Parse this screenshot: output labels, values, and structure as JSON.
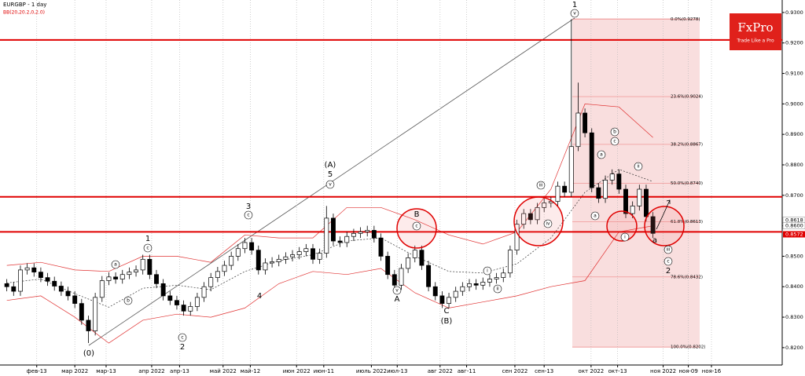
{
  "chart_data": {
    "type": "candlestick",
    "title": "EURGBP - 1 day",
    "brand": {
      "name": "FxPro",
      "tagline": "Trade Like a Pro"
    },
    "x": [
      0,
      1,
      2,
      3,
      4,
      5,
      6,
      7,
      8,
      9,
      10,
      11,
      12,
      13,
      14,
      15,
      16,
      17,
      18,
      19,
      20,
      21,
      22,
      23,
      24,
      25,
      26,
      27,
      28,
      29,
      30,
      31,
      32,
      33,
      34,
      35,
      36,
      37,
      38,
      39,
      40,
      41,
      42,
      43,
      44,
      45,
      46,
      47,
      48,
      49,
      50,
      51,
      52,
      53,
      54,
      55,
      56,
      57,
      58,
      59,
      60,
      61,
      62,
      63,
      64,
      65,
      66,
      67,
      68,
      69,
      70,
      71,
      72,
      73,
      74,
      75,
      76,
      77,
      78,
      79,
      80,
      81,
      82,
      83,
      84,
      85,
      86,
      87,
      88,
      89,
      90,
      91,
      92,
      93,
      94,
      95
    ],
    "open": [
      0.841,
      0.84,
      0.8385,
      0.8455,
      0.8462,
      0.8448,
      0.843,
      0.8418,
      0.8402,
      0.8385,
      0.837,
      0.8345,
      0.829,
      0.8255,
      0.8365,
      0.842,
      0.8432,
      0.8425,
      0.844,
      0.8448,
      0.8455,
      0.849,
      0.844,
      0.841,
      0.837,
      0.8355,
      0.834,
      0.832,
      0.8335,
      0.8365,
      0.84,
      0.843,
      0.845,
      0.847,
      0.85,
      0.8525,
      0.8545,
      0.852,
      0.8455,
      0.8478,
      0.8482,
      0.849,
      0.8498,
      0.8505,
      0.8515,
      0.8525,
      0.849,
      0.851,
      0.8625,
      0.855,
      0.8545,
      0.8565,
      0.8575,
      0.858,
      0.8585,
      0.856,
      0.85,
      0.844,
      0.8405,
      0.846,
      0.8495,
      0.852,
      0.847,
      0.84,
      0.837,
      0.8345,
      0.8365,
      0.8385,
      0.84,
      0.841,
      0.8405,
      0.8415,
      0.8425,
      0.843,
      0.8445,
      0.852,
      0.8605,
      0.864,
      0.862,
      0.866,
      0.8675,
      0.868,
      0.873,
      0.871,
      0.886,
      0.897,
      0.8905,
      0.8725,
      0.869,
      0.875,
      0.877,
      0.872,
      0.864,
      0.8665,
      0.872,
      0.863
    ],
    "high": [
      0.8425,
      0.8415,
      0.847,
      0.8477,
      0.8477,
      0.8463,
      0.8445,
      0.8433,
      0.8417,
      0.84,
      0.8385,
      0.836,
      0.8305,
      0.838,
      0.8435,
      0.8447,
      0.8447,
      0.8455,
      0.8463,
      0.847,
      0.8505,
      0.8505,
      0.8455,
      0.8425,
      0.8385,
      0.837,
      0.8355,
      0.835,
      0.838,
      0.8415,
      0.8445,
      0.8465,
      0.8485,
      0.8515,
      0.854,
      0.856,
      0.856,
      0.8535,
      0.8493,
      0.8497,
      0.8505,
      0.8513,
      0.852,
      0.853,
      0.854,
      0.854,
      0.8525,
      0.8665,
      0.864,
      0.8565,
      0.858,
      0.859,
      0.8595,
      0.86,
      0.86,
      0.8575,
      0.8515,
      0.8455,
      0.8475,
      0.851,
      0.8535,
      0.8535,
      0.8485,
      0.8415,
      0.8385,
      0.838,
      0.84,
      0.8415,
      0.8425,
      0.8425,
      0.843,
      0.844,
      0.8445,
      0.846,
      0.8535,
      0.862,
      0.8655,
      0.8655,
      0.8675,
      0.869,
      0.8695,
      0.8745,
      0.8745,
      0.9278,
      0.907,
      0.8985,
      0.892,
      0.874,
      0.8765,
      0.8785,
      0.8785,
      0.8735,
      0.868,
      0.8735,
      0.8735,
      0.8645
    ],
    "low": [
      0.8385,
      0.837,
      0.837,
      0.844,
      0.8433,
      0.8415,
      0.8403,
      0.8387,
      0.837,
      0.8355,
      0.833,
      0.8275,
      0.8215,
      0.824,
      0.835,
      0.8405,
      0.841,
      0.841,
      0.8425,
      0.8433,
      0.844,
      0.8425,
      0.8395,
      0.8355,
      0.834,
      0.8325,
      0.8305,
      0.8305,
      0.832,
      0.835,
      0.8385,
      0.8415,
      0.8435,
      0.8455,
      0.8485,
      0.851,
      0.8505,
      0.844,
      0.844,
      0.8463,
      0.8467,
      0.8475,
      0.8483,
      0.849,
      0.85,
      0.8475,
      0.8475,
      0.8495,
      0.8535,
      0.853,
      0.853,
      0.855,
      0.856,
      0.8565,
      0.8545,
      0.8485,
      0.8425,
      0.839,
      0.839,
      0.8445,
      0.848,
      0.8455,
      0.8385,
      0.8355,
      0.833,
      0.833,
      0.835,
      0.837,
      0.8385,
      0.839,
      0.839,
      0.84,
      0.841,
      0.8415,
      0.843,
      0.8505,
      0.859,
      0.8605,
      0.8605,
      0.8645,
      0.866,
      0.8665,
      0.8695,
      0.8695,
      0.8845,
      0.889,
      0.871,
      0.8675,
      0.8675,
      0.8735,
      0.8705,
      0.8625,
      0.8625,
      0.865,
      0.8615,
      0.856
    ],
    "close": [
      0.84,
      0.8385,
      0.8455,
      0.8462,
      0.8448,
      0.843,
      0.8418,
      0.8402,
      0.8385,
      0.837,
      0.8345,
      0.829,
      0.8255,
      0.8365,
      0.842,
      0.8432,
      0.8425,
      0.844,
      0.8448,
      0.8455,
      0.849,
      0.844,
      0.841,
      0.837,
      0.8355,
      0.834,
      0.832,
      0.8335,
      0.8365,
      0.84,
      0.843,
      0.845,
      0.847,
      0.85,
      0.8525,
      0.8545,
      0.852,
      0.8455,
      0.8478,
      0.8482,
      0.849,
      0.8498,
      0.8505,
      0.8515,
      0.8525,
      0.849,
      0.851,
      0.8625,
      0.855,
      0.8545,
      0.8565,
      0.8575,
      0.858,
      0.8585,
      0.856,
      0.85,
      0.844,
      0.8405,
      0.846,
      0.8495,
      0.852,
      0.847,
      0.84,
      0.837,
      0.8345,
      0.8365,
      0.8385,
      0.84,
      0.841,
      0.8405,
      0.8415,
      0.8425,
      0.843,
      0.8445,
      0.852,
      0.8605,
      0.864,
      0.862,
      0.866,
      0.8675,
      0.868,
      0.873,
      0.871,
      0.886,
      0.897,
      0.8905,
      0.8725,
      0.869,
      0.875,
      0.877,
      0.872,
      0.864,
      0.8665,
      0.872,
      0.863,
      0.8575
    ],
    "bollinger": {
      "name": "BB(20,20.2,0,2.0)",
      "x": [
        0,
        5,
        10,
        15,
        20,
        25,
        30,
        35,
        40,
        45,
        50,
        55,
        60,
        65,
        70,
        75,
        80,
        85,
        90,
        95
      ],
      "upper": [
        0.847,
        0.848,
        0.8455,
        0.845,
        0.85,
        0.85,
        0.848,
        0.857,
        0.856,
        0.856,
        0.866,
        0.866,
        0.862,
        0.857,
        0.854,
        0.858,
        0.872,
        0.9,
        0.899,
        0.889
      ],
      "middle": [
        0.84125,
        0.8425,
        0.83775,
        0.83325,
        0.8395,
        0.8405,
        0.839,
        0.845,
        0.8485,
        0.8505,
        0.855,
        0.856,
        0.85,
        0.845,
        0.8445,
        0.8475,
        0.856,
        0.871,
        0.8785,
        0.8745
      ],
      "lower": [
        0.8355,
        0.837,
        0.83,
        0.8215,
        0.829,
        0.831,
        0.83,
        0.833,
        0.841,
        0.845,
        0.844,
        0.846,
        0.838,
        0.833,
        0.835,
        0.837,
        0.84,
        0.842,
        0.858,
        0.86
      ]
    },
    "xlim": [
      -1,
      114
    ],
    "xticks": [
      {
        "value": 4.4,
        "label": "фев-13"
      },
      {
        "value": 10.0,
        "label": "мар 2022"
      },
      {
        "value": 14.6,
        "label": "мар-13"
      },
      {
        "value": 21.3,
        "label": "апр 2022"
      },
      {
        "value": 25.4,
        "label": "апр-13"
      },
      {
        "value": 31.8,
        "label": "май 2022"
      },
      {
        "value": 35.8,
        "label": "май-12"
      },
      {
        "value": 42.6,
        "label": "июн 2022"
      },
      {
        "value": 46.6,
        "label": "июн-11"
      },
      {
        "value": 53.6,
        "label": "июль 2022"
      },
      {
        "value": 57.4,
        "label": "июл-13"
      },
      {
        "value": 63.7,
        "label": "авг 2022"
      },
      {
        "value": 67.6,
        "label": "авг-11"
      },
      {
        "value": 74.7,
        "label": "сен 2022"
      },
      {
        "value": 79.0,
        "label": "сен-13"
      },
      {
        "value": 85.9,
        "label": "окт 2022"
      },
      {
        "value": 89.8,
        "label": "окт-13"
      },
      {
        "value": 96.5,
        "label": "ноя 2022"
      },
      {
        "value": 100.2,
        "label": "ноя-09"
      },
      {
        "value": 103.6,
        "label": "ноя-16"
      }
    ],
    "ylim": [
      0.8143,
      0.9341
    ],
    "yticks": [
      {
        "value": 0.82,
        "label": "0.8200"
      },
      {
        "value": 0.83,
        "label": "0.8300"
      },
      {
        "value": 0.84,
        "label": "0.8400"
      },
      {
        "value": 0.85,
        "label": "0.8500"
      },
      {
        "value": 0.86,
        "label": "0.8600"
      },
      {
        "value": 0.87,
        "label": "0.8700"
      },
      {
        "value": 0.88,
        "label": "0.8800"
      },
      {
        "value": 0.89,
        "label": "0.8900"
      },
      {
        "value": 0.9,
        "label": "0.9000"
      },
      {
        "value": 0.91,
        "label": "0.9100"
      },
      {
        "value": 0.92,
        "label": "0.9200"
      },
      {
        "value": 0.93,
        "label": "0.9300"
      }
    ],
    "levels": [
      0.921,
      0.8695,
      0.858
    ],
    "price_tags": [
      {
        "value": 0.8618,
        "label": "0.8618"
      },
      {
        "value": 0.86,
        "label": "0.8600"
      },
      {
        "value": 0.8572,
        "label": "0.8572"
      }
    ],
    "fib_levels": [
      {
        "value": 0.9278,
        "label": "0.0%(0.9278)"
      },
      {
        "value": 0.9024,
        "label": "23.6%(0.9024)"
      },
      {
        "value": 0.8867,
        "label": "38.2%(0.8867)"
      },
      {
        "value": 0.874,
        "label": "50.0%(0.8740)"
      },
      {
        "value": 0.8613,
        "label": "61.8%(0.8613)"
      },
      {
        "value": 0.8432,
        "label": "78.6%(0.8432)"
      },
      {
        "value": 0.8202,
        "label": "100.0%(0.8202)"
      }
    ],
    "annotations": [
      "1",
      "v",
      "(0)",
      "1",
      "c",
      "2",
      "c",
      "3",
      "c",
      "4",
      "5",
      "(A)",
      "v",
      "B",
      "c",
      "A",
      "v",
      "C",
      "(B)",
      "iii",
      "c",
      "2",
      "i",
      "ii",
      "b",
      "c",
      "a",
      "a",
      "iii",
      "iv",
      "i",
      "ii",
      "a",
      "b",
      "a"
    ]
  }
}
